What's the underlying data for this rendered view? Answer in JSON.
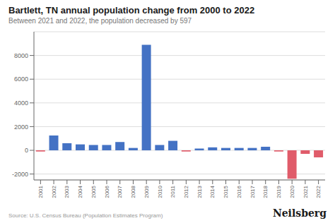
{
  "chart_data": {
    "type": "bar",
    "title": "Bartlett, TN annual population change from 2000 to 2022",
    "subtitle": "Between 2021 and 2022, the population decreased by 597",
    "annotations": [
      "Source: U.S. Census Bureau (Population Estimates Program)",
      "Neilsberg"
    ],
    "categories": [
      "2001",
      "2002",
      "2003",
      "2004",
      "2005",
      "2006",
      "2007",
      "2008",
      "2009",
      "2010",
      "2011",
      "2012",
      "2013",
      "2014",
      "2015",
      "2016",
      "2017",
      "2018",
      "2019",
      "2020",
      "2021",
      "2022"
    ],
    "values": [
      -100,
      1250,
      600,
      500,
      450,
      450,
      700,
      200,
      8900,
      450,
      800,
      -100,
      150,
      250,
      200,
      200,
      200,
      300,
      -100,
      -2400,
      -300,
      -597
    ],
    "colors": [
      "#E05C6A",
      "#4472C4",
      "#4472C4",
      "#4472C4",
      "#4472C4",
      "#4472C4",
      "#4472C4",
      "#4472C4",
      "#4472C4",
      "#4472C4",
      "#4472C4",
      "#E05C6A",
      "#4472C4",
      "#4472C4",
      "#4472C4",
      "#4472C4",
      "#4472C4",
      "#4472C4",
      "#E05C6A",
      "#E05C6A",
      "#E05C6A",
      "#E05C6A"
    ],
    "ylim": [
      -2500,
      10000
    ],
    "yticks": [
      -2000,
      0,
      2000,
      4000,
      6000,
      8000
    ],
    "grid": true
  }
}
